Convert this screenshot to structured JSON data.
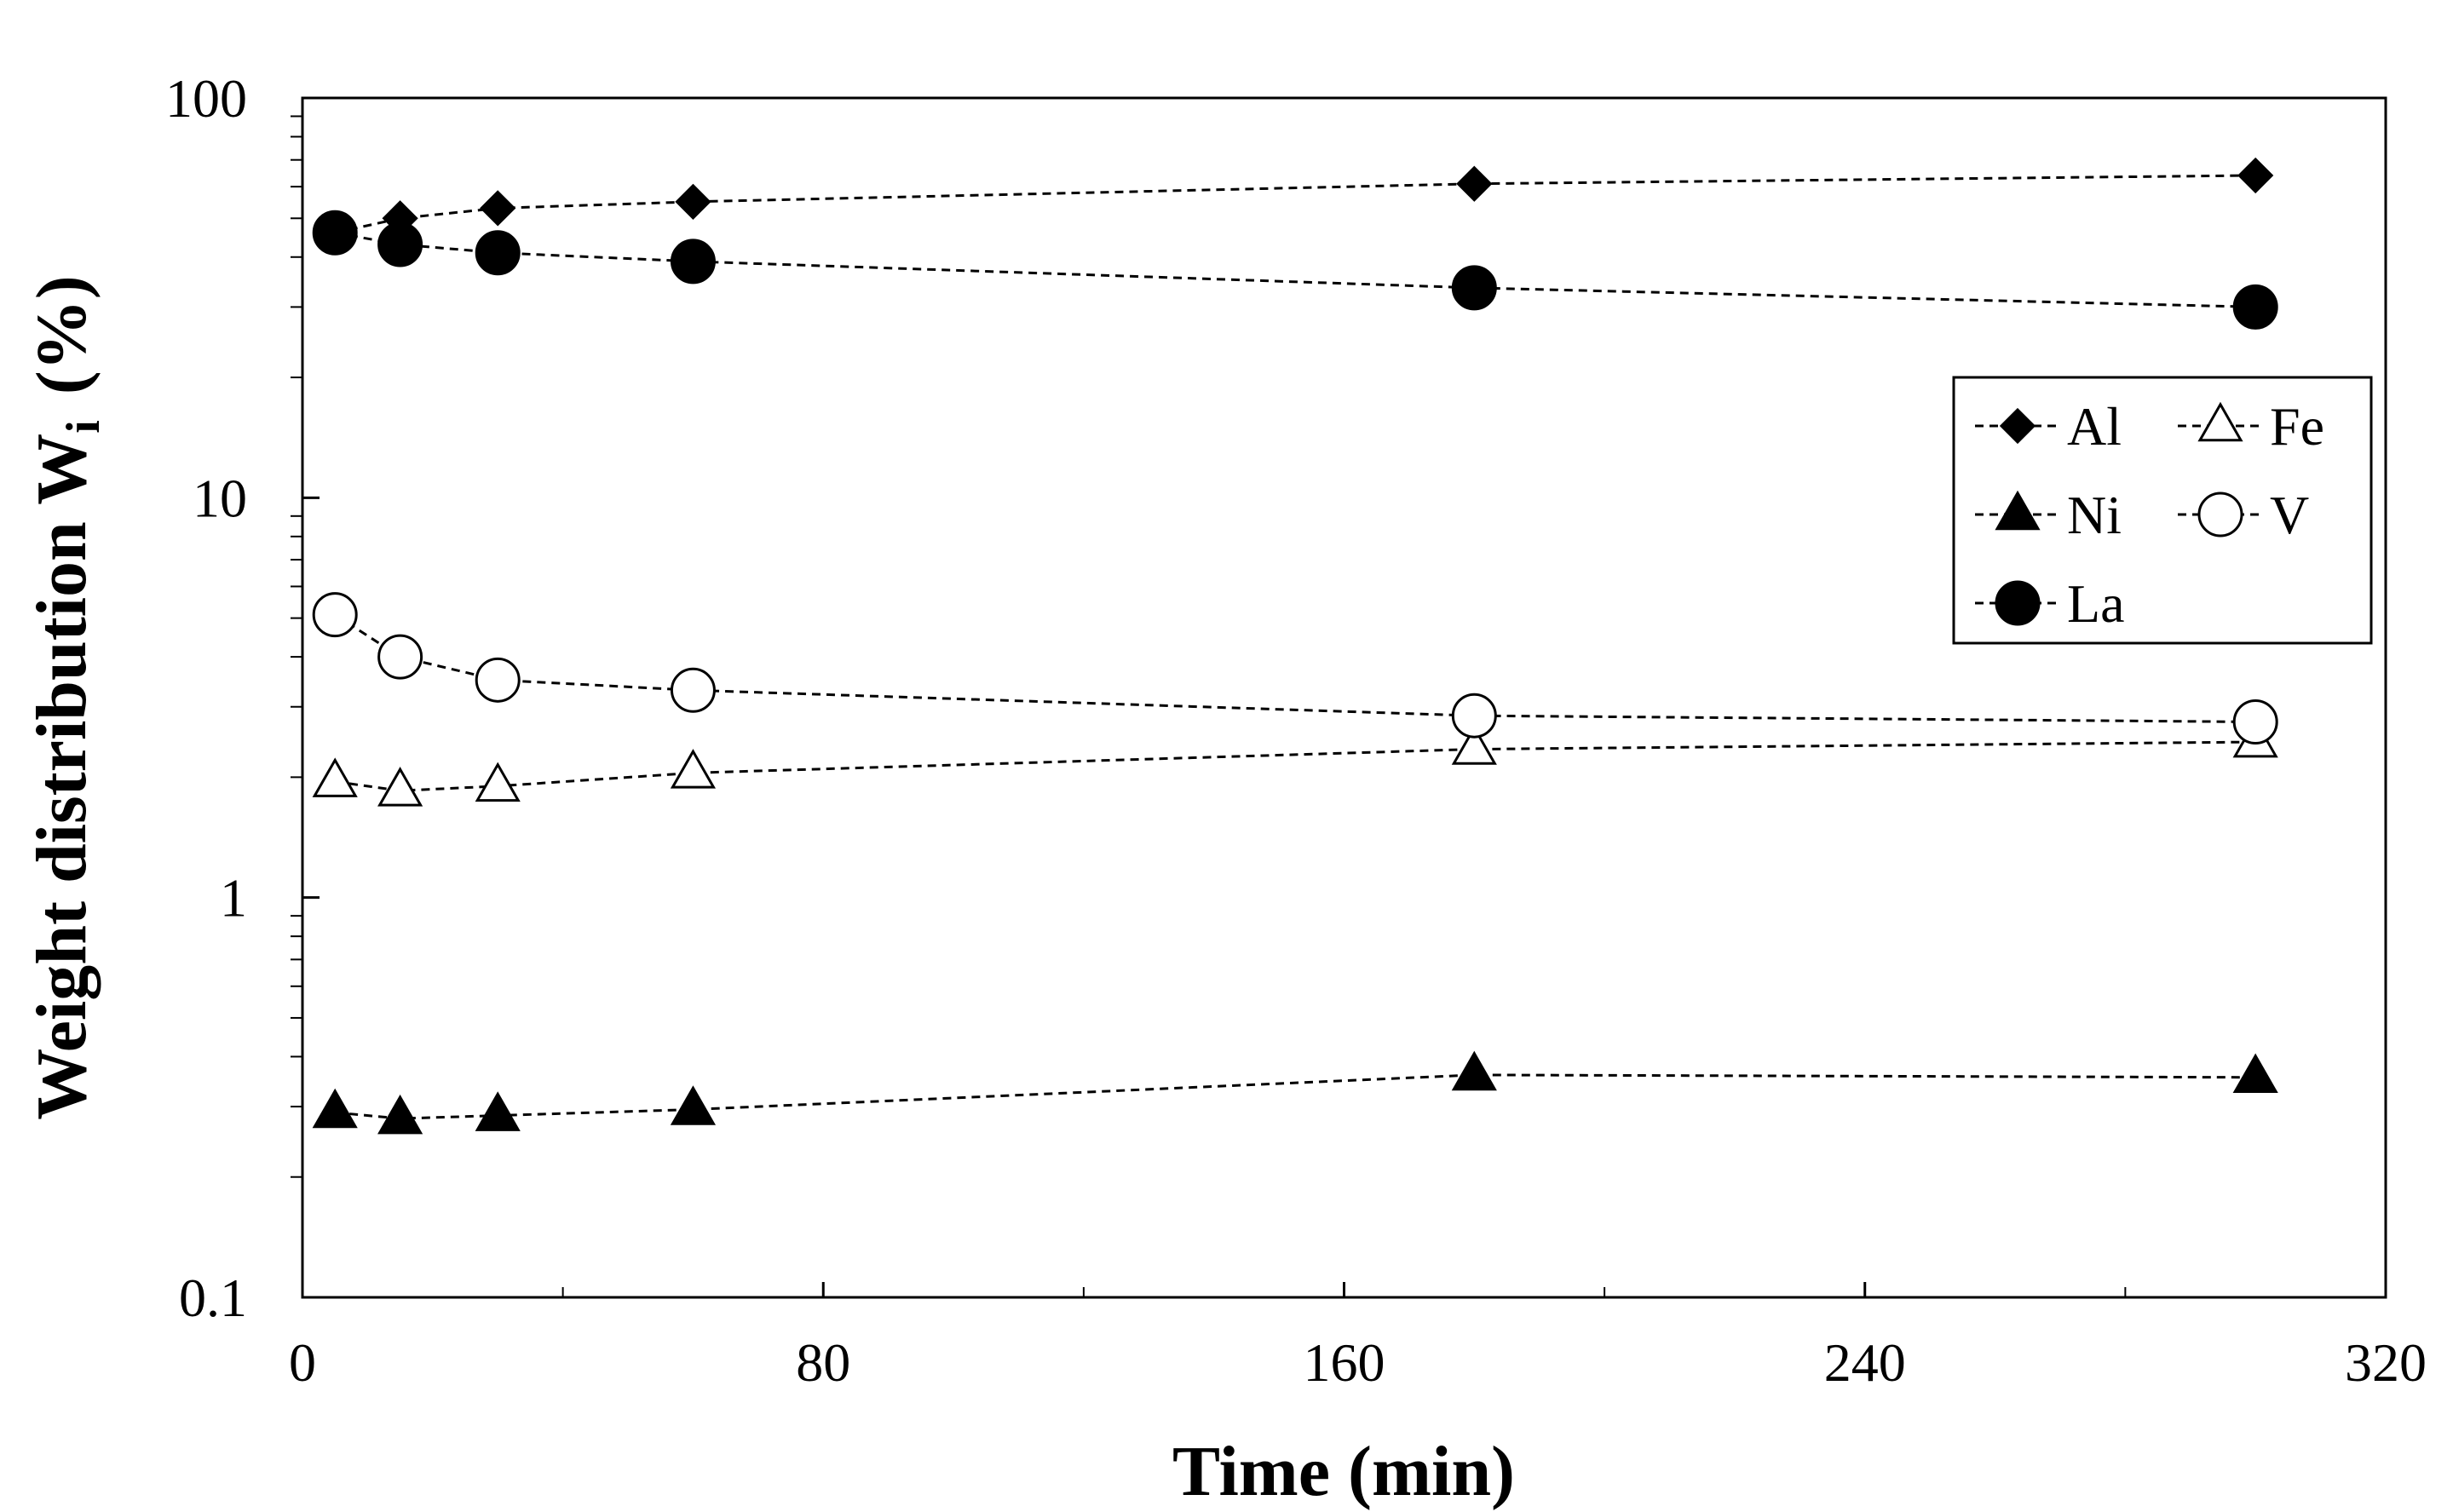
{
  "chart_data": {
    "type": "scatter",
    "xlabel": "Time (min)",
    "ylabel": "Weight distribution W",
    "ylabel_subscript": "i",
    "ylabel_unit": "(%)",
    "xlim": [
      0,
      320
    ],
    "ylim": [
      0.1,
      100
    ],
    "yscale": "log",
    "xticks": [
      0,
      80,
      160,
      240,
      320
    ],
    "xtick_labels": [
      "0",
      "80",
      "160",
      "240",
      "320"
    ],
    "yticks": [
      0.1,
      1,
      10,
      100
    ],
    "ytick_labels": [
      "0.1",
      "1",
      "10",
      "100"
    ],
    "grid": false,
    "legend_position": "right",
    "series": [
      {
        "name": "Al",
        "marker": "diamond",
        "filled": true,
        "line": "dashed",
        "x": [
          5,
          15,
          30,
          60,
          180,
          300
        ],
        "y": [
          46,
          50,
          53,
          55,
          61,
          64
        ]
      },
      {
        "name": "Fe",
        "marker": "triangle",
        "filled": false,
        "line": "dashed",
        "x": [
          5,
          15,
          30,
          60,
          180,
          300
        ],
        "y": [
          1.95,
          1.85,
          1.9,
          2.05,
          2.35,
          2.45
        ]
      },
      {
        "name": "Ni",
        "marker": "triangle",
        "filled": true,
        "line": "dashed",
        "x": [
          5,
          15,
          30,
          60,
          180,
          300
        ],
        "y": [
          0.29,
          0.28,
          0.285,
          0.295,
          0.36,
          0.355
        ]
      },
      {
        "name": "V",
        "marker": "circle",
        "filled": false,
        "line": "dashed",
        "x": [
          5,
          15,
          30,
          60,
          180,
          300
        ],
        "y": [
          5.1,
          4.0,
          3.5,
          3.3,
          2.85,
          2.75
        ]
      },
      {
        "name": "La",
        "marker": "circle",
        "filled": true,
        "line": "dashed",
        "x": [
          5,
          15,
          30,
          60,
          180,
          300
        ],
        "y": [
          46,
          43,
          41,
          39,
          33.5,
          30
        ]
      }
    ]
  }
}
